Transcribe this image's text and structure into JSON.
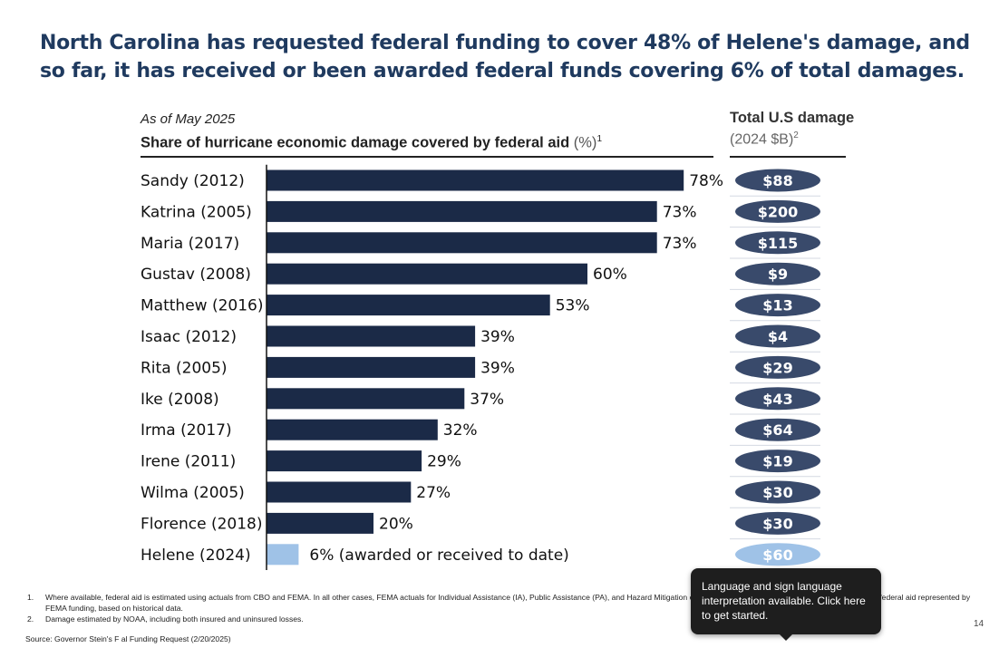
{
  "title": "North Carolina has requested federal funding to cover 48% of Helene's damage, and so far, it has received or been awarded federal funds covering 6% of total damages.",
  "as_of": "As of May 2025",
  "chart_data": {
    "type": "bar",
    "orientation": "horizontal",
    "subtitle": "Share of hurricane economic damage covered by federal aid",
    "subtitle_unit": "(%)",
    "subtitle_footnote": "1",
    "categories": [
      "Sandy (2012)",
      "Katrina (2005)",
      "Maria (2017)",
      "Gustav (2008)",
      "Matthew (2016)",
      "Isaac (2012)",
      "Rita (2005)",
      "Ike (2008)",
      "Irma (2017)",
      "Irene (2011)",
      "Wilma (2005)",
      "Florence (2018)",
      "Helene (2024)"
    ],
    "values": [
      78,
      73,
      73,
      60,
      53,
      39,
      39,
      37,
      32,
      29,
      27,
      20,
      6
    ],
    "value_labels": [
      "78%",
      "73%",
      "73%",
      "60%",
      "53%",
      "39%",
      "39%",
      "37%",
      "32%",
      "29%",
      "27%",
      "20%",
      "6% (awarded or received to date)"
    ],
    "xlim": [
      0,
      100
    ],
    "bar_color": "#1b2a47",
    "highlight_color": "#9fc2e7",
    "highlight_category": "Helene (2024)",
    "damage_header": "Total U.S damage",
    "damage_unit": "(2024 $B)",
    "damage_footnote": "2",
    "damage_values": [
      88,
      200,
      115,
      9,
      13,
      4,
      29,
      43,
      64,
      19,
      30,
      30,
      60
    ],
    "damage_labels": [
      "$88",
      "$200",
      "$115",
      "$9",
      "$13",
      "$4",
      "$29",
      "$43",
      "$64",
      "$19",
      "$30",
      "$30",
      "$60"
    ],
    "pill_color": "#394a6b"
  },
  "footnotes": [
    {
      "num": "1.",
      "text": "Where available, federal aid is estimated using actuals from CBO and FEMA. In all other cases, FEMA actuals for Individual Assistance (IA), Public Assistance (PA), and Hazard Mitigation                                                                                                              ederal aid was estimated based on the typical share of federal aid represented by FEMA funding, based on historical data."
    },
    {
      "num": "2.",
      "text": "Damage estimated by NOAA, including both insured and uninsured losses."
    }
  ],
  "source": "Source: Governor Stein's F   al Funding Request (2/20/2025)",
  "page_number": "14",
  "tooltip": "Language and sign language interpretation available. Click here to get started."
}
